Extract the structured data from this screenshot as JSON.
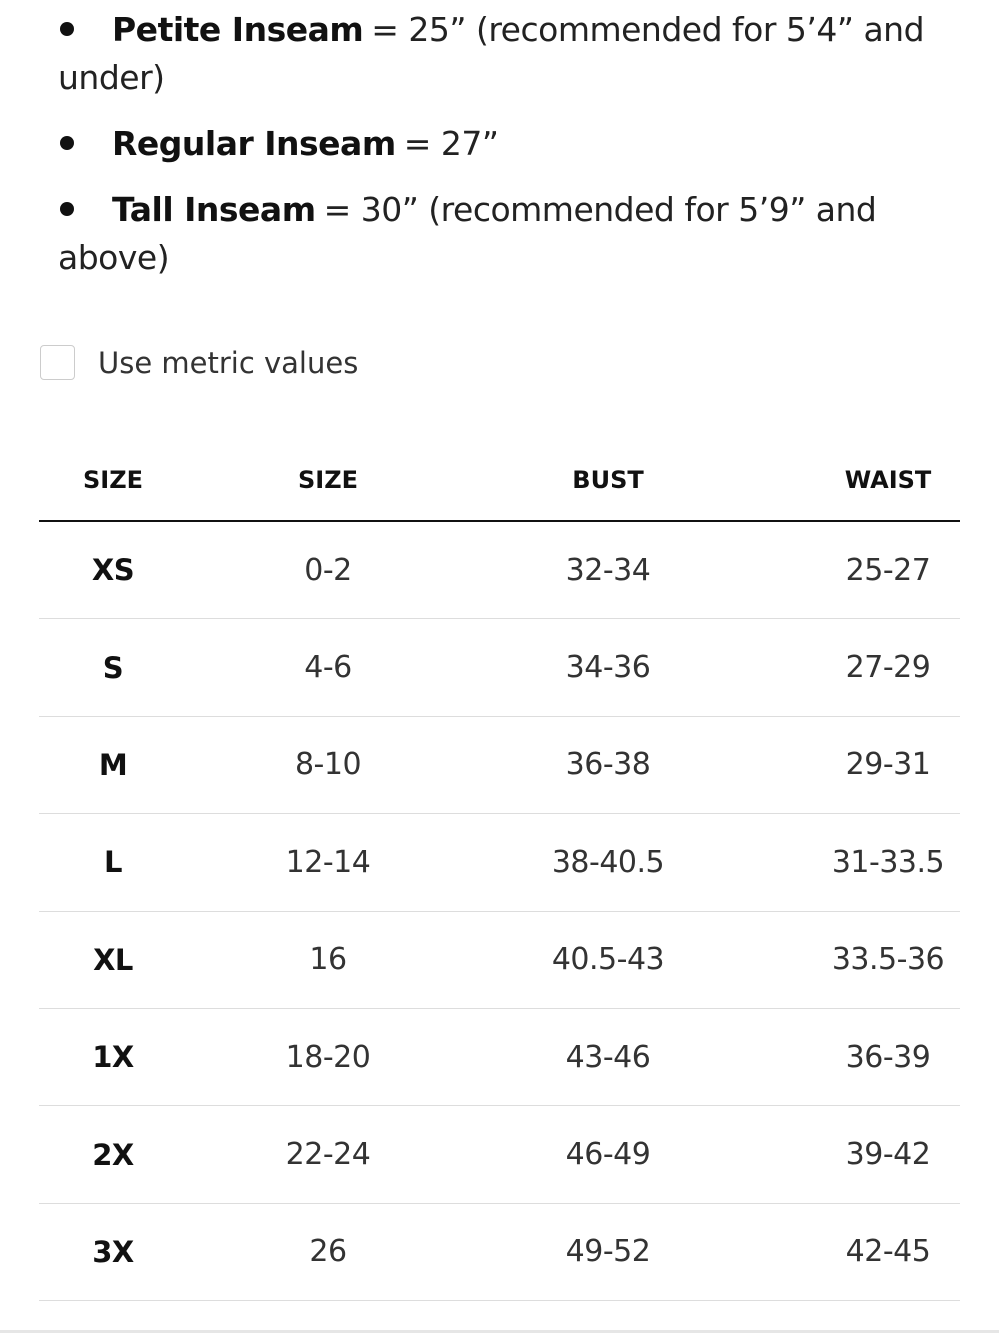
{
  "inseam_list": [
    {
      "label": "Petite Inseam",
      "text": "= 25” (recommended for 5’4” and under)"
    },
    {
      "label": "Regular Inseam",
      "text": "= 27”"
    },
    {
      "label": "Tall Inseam",
      "text": "= 30” (recommended for 5’9” and above)"
    }
  ],
  "metric_toggle": {
    "label": "Use metric values"
  },
  "table": {
    "header": [
      "SIZE",
      "SIZE",
      "BUST",
      "WAIST"
    ],
    "rows": [
      [
        "XS",
        "0-2",
        "32-34",
        "25-27"
      ],
      [
        "S",
        "4-6",
        "34-36",
        "27-29"
      ],
      [
        "M",
        "8-10",
        "36-38",
        "29-31"
      ],
      [
        "L",
        "12-14",
        "38-40.5",
        "31-33.5"
      ],
      [
        "XL",
        "16",
        "40.5-43",
        "33.5-36"
      ],
      [
        "1X",
        "18-20",
        "43-46",
        "36-39"
      ],
      [
        "2X",
        "22-24",
        "46-49",
        "39-42"
      ],
      [
        "3X",
        "26",
        "49-52",
        "42-45"
      ]
    ]
  }
}
